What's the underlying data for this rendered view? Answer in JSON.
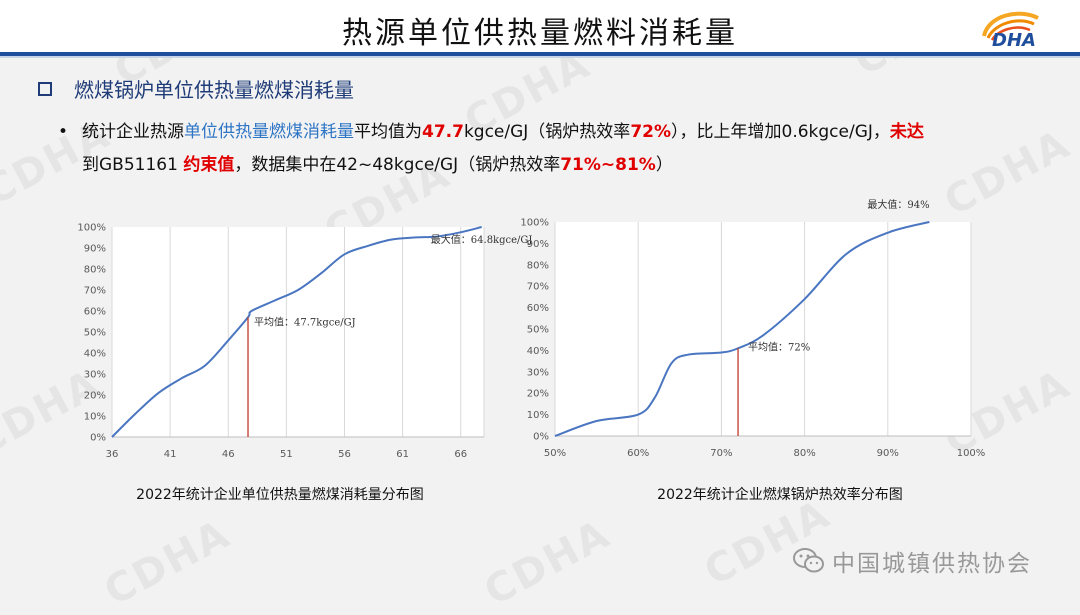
{
  "title": "热源单位供热量燃料消耗量",
  "logo_text": "DHA",
  "watermark_text": "CDHA",
  "section_title": "燃煤锅炉单位供热量燃煤消耗量",
  "para": {
    "l1_a": "统计企业热源",
    "l1_b": "单位供热量燃煤消耗量",
    "l1_c": "平均值为",
    "l1_d": "47.7",
    "l1_e": "kgce/GJ（锅炉热效率",
    "l1_f": "72%",
    "l1_g": "），比上年增加0.6kgce/GJ，",
    "l1_h": "未达",
    "l2_a": "到GB51161 ",
    "l2_b": "约束值",
    "l2_c": "，数据集中在42~48kgce/GJ（锅炉热效率",
    "l2_d": "71%~81%",
    "l2_e": "）"
  },
  "footer_text": "中国城镇供热协会",
  "colors": {
    "series": "#4a76c1",
    "marker": "#c0392b",
    "highlight_blue": "#2e75c5",
    "highlight_red": "#e00000",
    "header_bar": "#1f4e9c"
  },
  "chart_data": [
    {
      "type": "line",
      "title": "2022年统计企业单位供热量燃煤消耗量分布图",
      "xlim": [
        36,
        68
      ],
      "xticks": [
        36,
        41,
        46,
        51,
        56,
        61,
        66
      ],
      "ylim": [
        0,
        100
      ],
      "yticks": [
        0,
        10,
        20,
        30,
        40,
        50,
        60,
        70,
        80,
        90,
        100
      ],
      "y_unit": "%",
      "grid": "vertical",
      "series": [
        {
          "x": [
            36,
            38,
            40,
            42,
            44,
            46,
            47.7,
            48,
            50,
            52,
            54,
            56,
            58,
            60,
            62,
            64,
            66,
            67.8
          ],
          "y": [
            0,
            11,
            21,
            28,
            34,
            46,
            57,
            60,
            65,
            70,
            78,
            87,
            91,
            94,
            95,
            95.5,
            97.5,
            100
          ]
        }
      ],
      "marker_x": 47.7,
      "marker_y": 57,
      "annotations": {
        "avg": "平均值：47.7kgce/GJ",
        "max": "最大值：64.8kgce/GJ"
      }
    },
    {
      "type": "line",
      "title": "2022年统计企业燃煤锅炉热效率分布图",
      "xlim": [
        50,
        100
      ],
      "xticks": [
        50,
        60,
        70,
        80,
        90,
        100
      ],
      "xtick_suffix": "%",
      "ylim": [
        0,
        100
      ],
      "yticks": [
        0,
        10,
        20,
        30,
        40,
        50,
        60,
        70,
        80,
        90,
        100
      ],
      "y_unit": "%",
      "grid": "vertical",
      "series": [
        {
          "x": [
            50,
            55,
            60,
            62,
            64,
            66,
            70,
            72,
            75,
            80,
            85,
            90,
            95
          ],
          "y": [
            0,
            7,
            10,
            18,
            34,
            38,
            39,
            41,
            47,
            64,
            85,
            95,
            100
          ]
        }
      ],
      "marker_x": 72,
      "marker_y": 41,
      "annotations": {
        "avg": "平均值：72%",
        "max": "最大值：94%"
      }
    }
  ]
}
